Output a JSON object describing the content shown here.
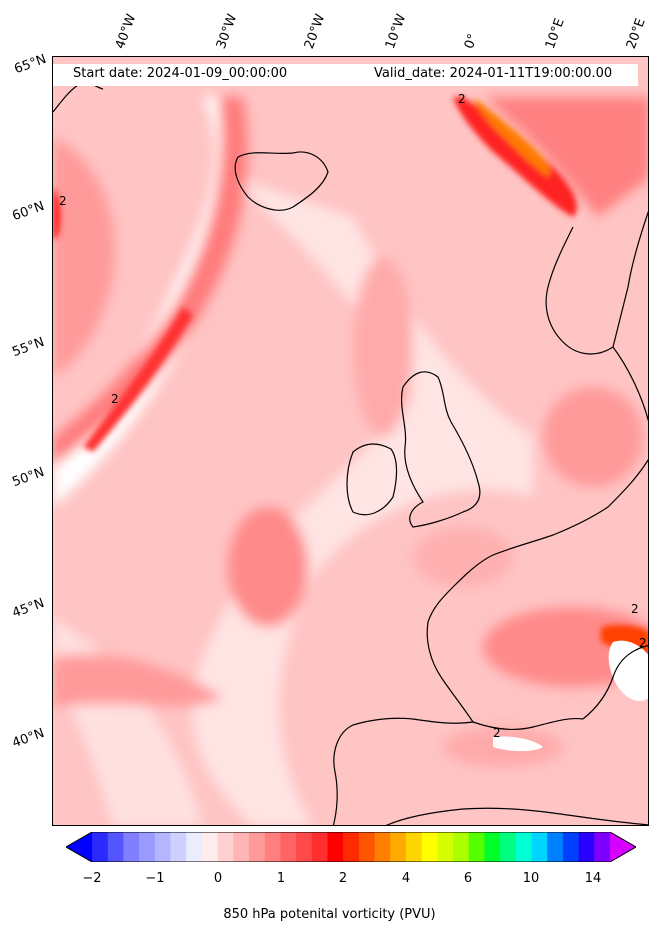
{
  "header": {
    "start_date": "Start date: 2024-01-09_00:00:00",
    "valid_date": "Valid_date: 2024-01-11T19:00:00.00"
  },
  "longitude_labels": [
    "40°W",
    "30°W",
    "20°W",
    "10°W",
    "0°",
    "10°E",
    "20°E"
  ],
  "latitude_labels": [
    "65°N",
    "60°N",
    "55°N",
    "50°N",
    "45°N",
    "40°N"
  ],
  "contour_labels": [
    "2",
    "2",
    "2",
    "2",
    "2",
    "2"
  ],
  "colorbar": {
    "ticks": [
      "−2",
      "−1",
      "0",
      "1",
      "2",
      "4",
      "6",
      "10",
      "14"
    ],
    "label": "850 hPa potenital vorticity (PVU)",
    "colors": [
      "#0000ff",
      "#2a2aff",
      "#5555ff",
      "#7f7fff",
      "#9a9aff",
      "#b5b5ff",
      "#d0d0ff",
      "#ececff",
      "#ffecec",
      "#ffd0d0",
      "#ffb5b5",
      "#ff9a9a",
      "#ff7f7f",
      "#ff6464",
      "#ff4a4a",
      "#ff2f2f",
      "#ff0000",
      "#ff2a00",
      "#ff5500",
      "#ff8000",
      "#ffaa00",
      "#ffd500",
      "#ffff00",
      "#d5ff00",
      "#aaff00",
      "#55ff00",
      "#00ff2a",
      "#00ff80",
      "#00ffd5",
      "#00d5ff",
      "#0080ff",
      "#0040ff",
      "#2a00ff",
      "#8000ff",
      "#d500ff"
    ]
  }
}
